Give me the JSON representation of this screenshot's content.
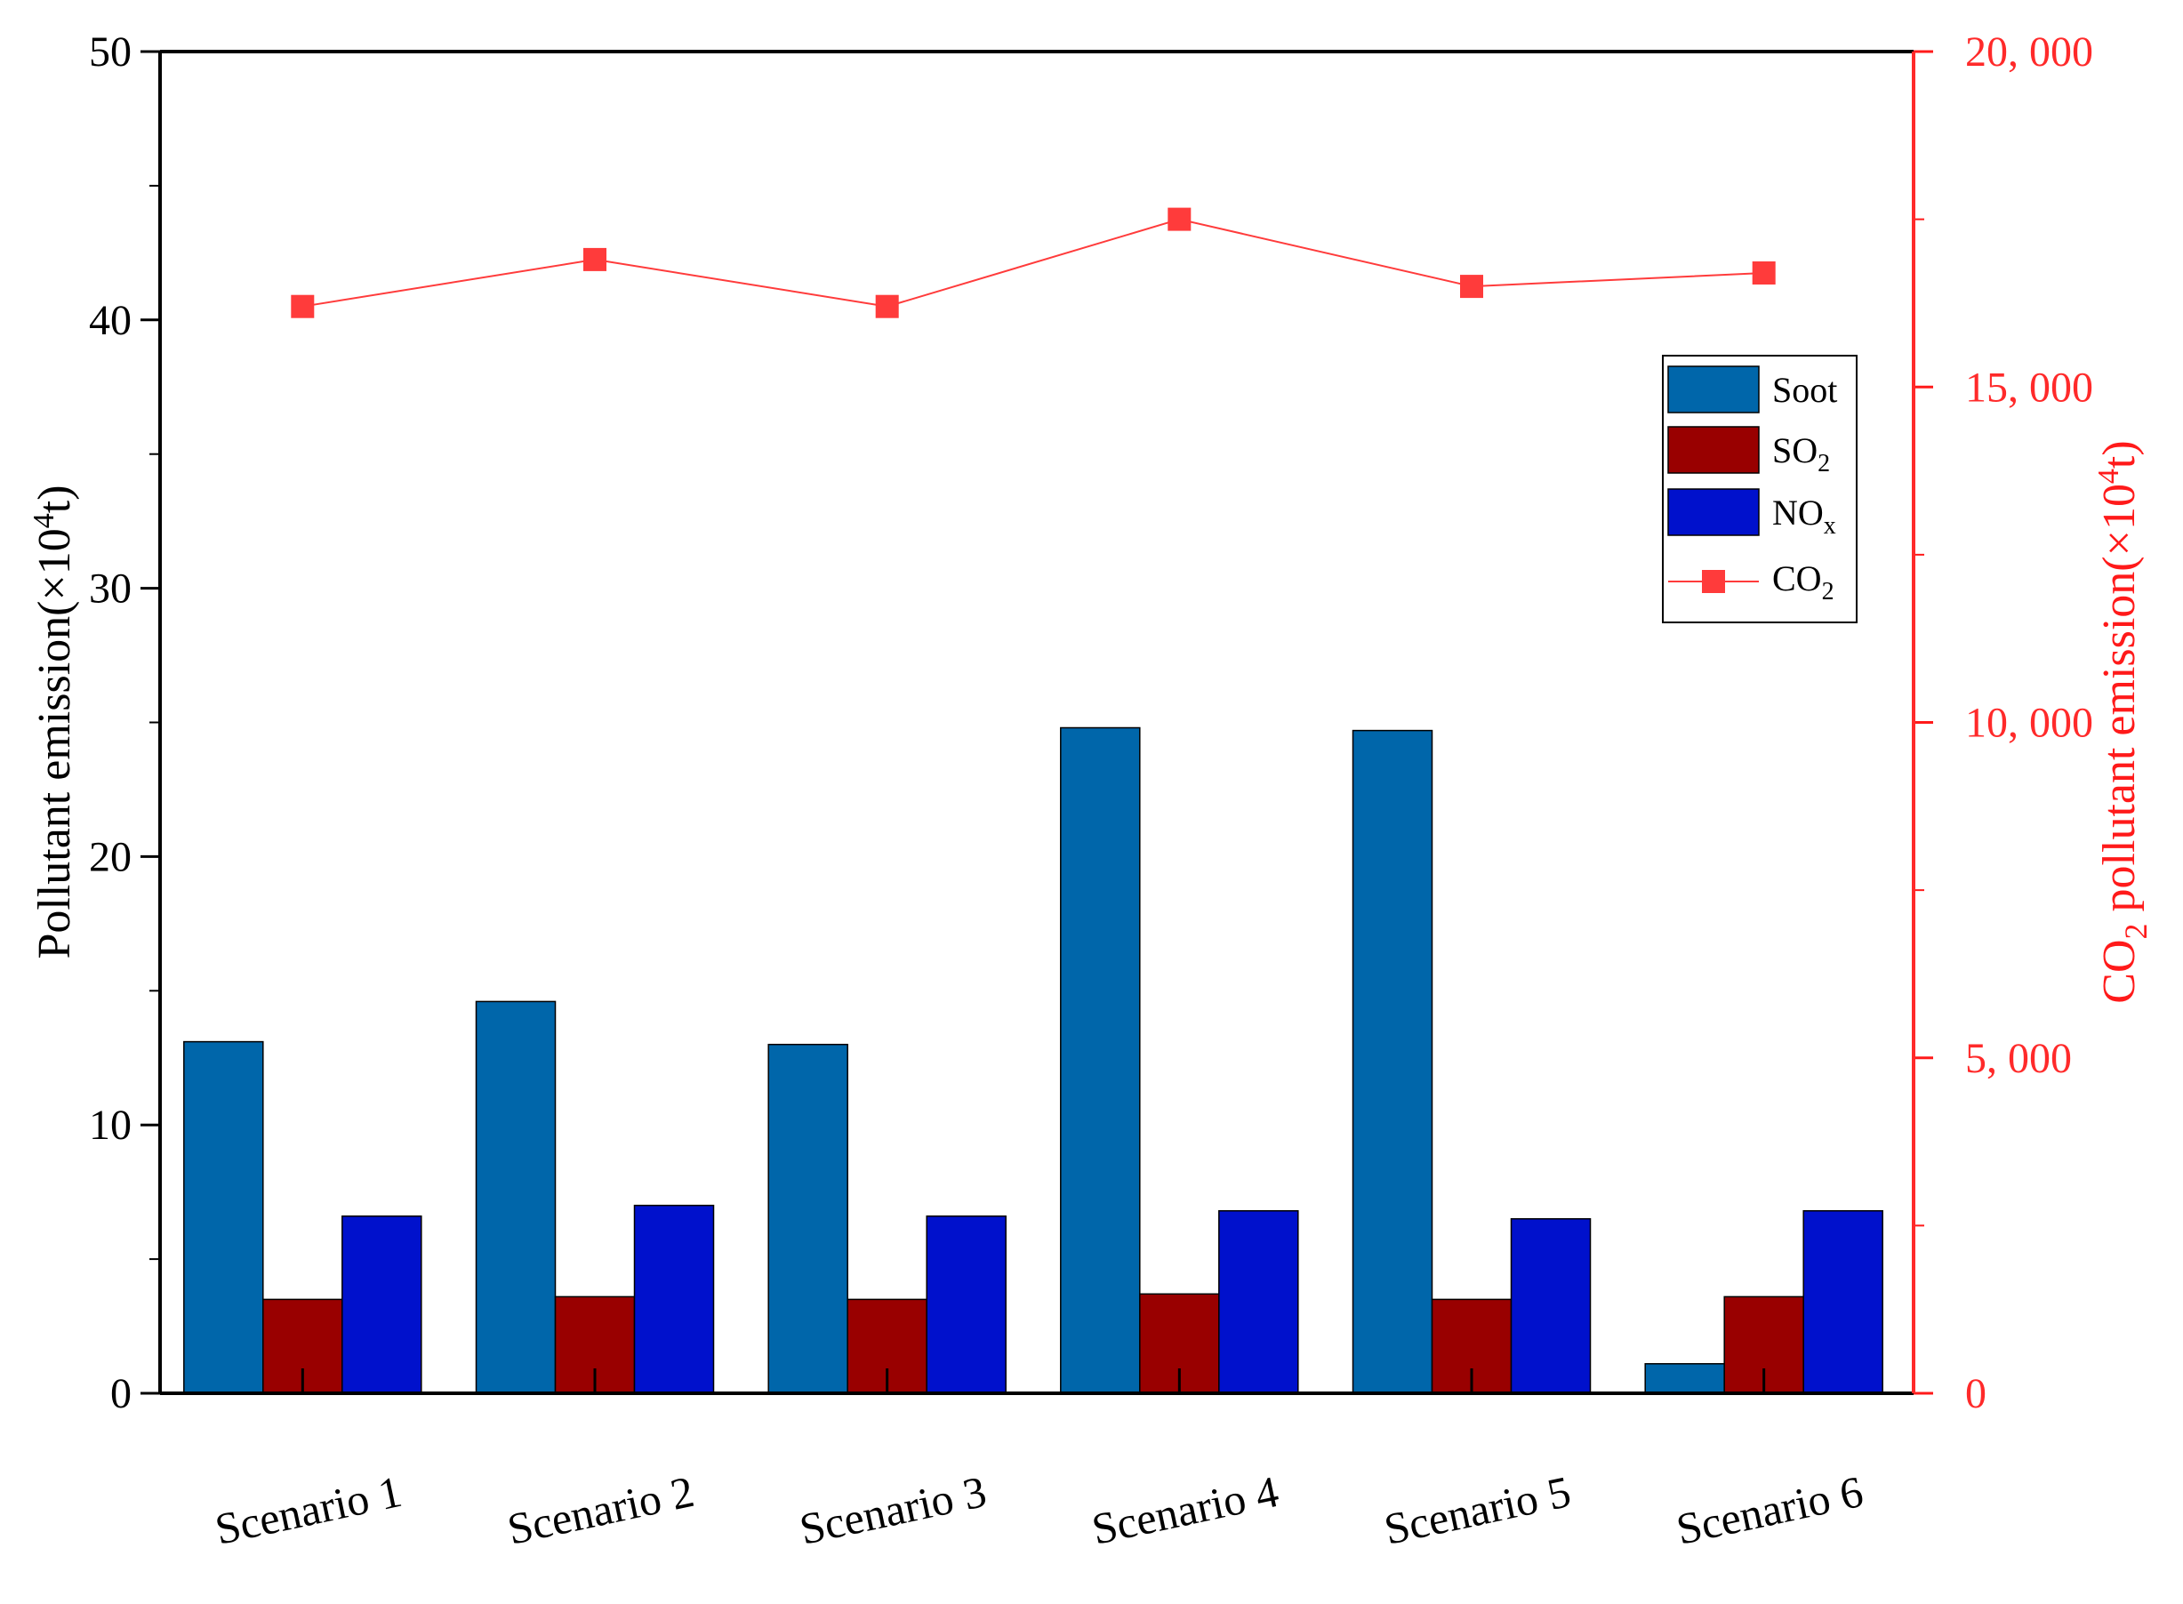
{
  "chart_data": {
    "type": "bar",
    "categories": [
      "Scenario 1",
      "Scenario 2",
      "Scenario 3",
      "Scenario 4",
      "Scenario 5",
      "Scenario 6"
    ],
    "series": [
      {
        "name": "Soot",
        "axis": "left",
        "color": "#0066aa",
        "values": [
          13.1,
          14.6,
          13.0,
          24.8,
          24.7,
          1.1
        ]
      },
      {
        "name": "SO2",
        "axis": "left",
        "color": "#990000",
        "values": [
          3.5,
          3.6,
          3.5,
          3.7,
          3.5,
          3.6
        ]
      },
      {
        "name": "NOx",
        "axis": "left",
        "color": "#0011cc",
        "values": [
          6.6,
          7.0,
          6.6,
          6.8,
          6.5,
          6.8
        ]
      },
      {
        "name": "CO2",
        "axis": "right",
        "type": "line",
        "color": "#ff3b3b",
        "values": [
          16200,
          16900,
          16200,
          17500,
          16500,
          16700
        ]
      }
    ],
    "left_axis": {
      "label_main": "Pollutant emission(×10",
      "label_sup": "4",
      "label_end": "t)",
      "ylim": [
        0,
        50
      ],
      "ticks": [
        0,
        10,
        20,
        30,
        40,
        50
      ],
      "tick_labels": [
        "0",
        "10",
        "20",
        "30",
        "40",
        "50"
      ]
    },
    "right_axis": {
      "label_sub_prefix": "CO",
      "label_sub": "2",
      "label_main": " pollutant emission(×10",
      "label_sup": "4",
      "label_end": "t)",
      "ylim": [
        0,
        20000
      ],
      "ticks": [
        0,
        5000,
        10000,
        15000,
        20000
      ],
      "tick_labels": [
        "0",
        "5, 000",
        "10, 000",
        "15, 000",
        "20, 000"
      ],
      "color": "#ff1a1a"
    },
    "legend": {
      "position": "top-right",
      "items": [
        {
          "base": "Soot",
          "sub": ""
        },
        {
          "base": "SO",
          "sub": "2"
        },
        {
          "base": "NO",
          "sub": "x"
        },
        {
          "base": "CO",
          "sub": "2"
        }
      ]
    }
  }
}
